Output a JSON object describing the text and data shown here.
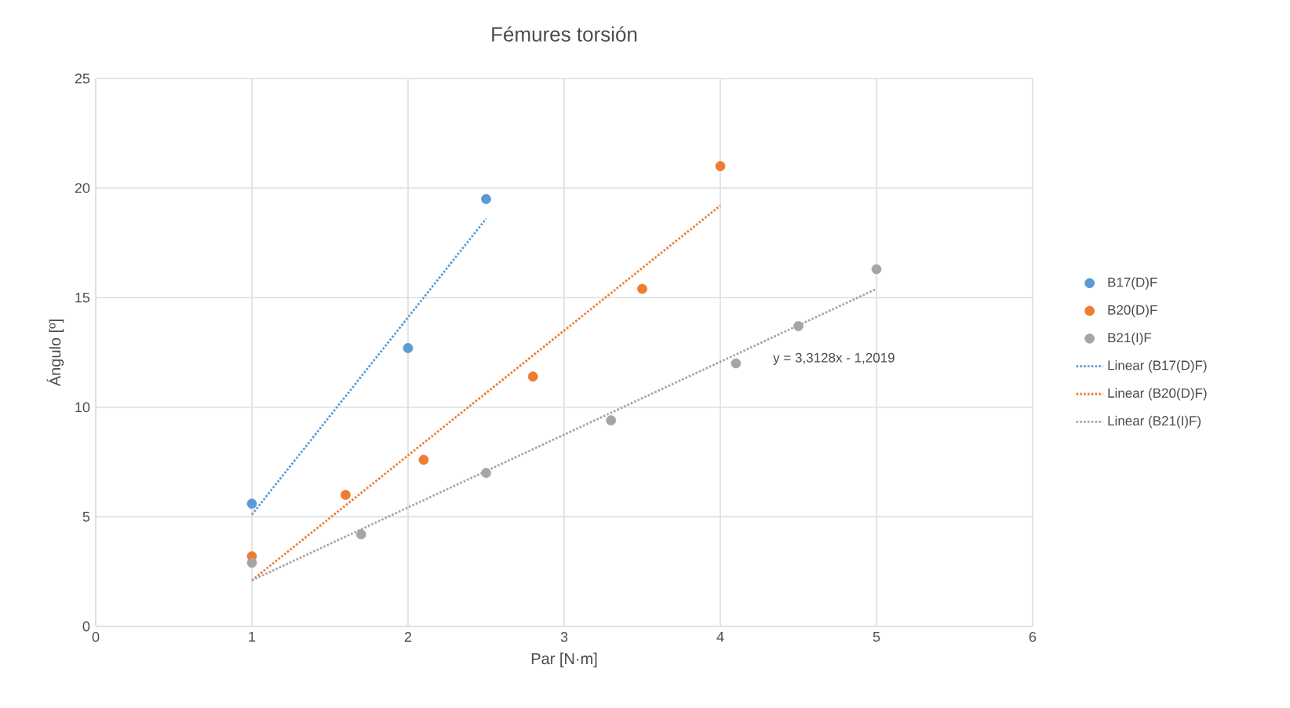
{
  "chart_data": {
    "type": "scatter",
    "title": "Fémures torsión",
    "xlabel": "Par [N·m]",
    "ylabel": "Ángulo [º]",
    "xlim": [
      0,
      6
    ],
    "xticks": [
      0,
      1,
      2,
      3,
      4,
      5,
      6
    ],
    "ylim": [
      0,
      25
    ],
    "yticks": [
      0,
      5,
      10,
      15,
      20,
      25
    ],
    "grid": true,
    "legend": "right",
    "marker": "circle",
    "series": [
      {
        "name": "B17(D)F",
        "color": "#5b9bd5",
        "x": [
          1,
          2,
          2.5
        ],
        "values": [
          5.6,
          12.7,
          19.5
        ]
      },
      {
        "name": "B20(D)F",
        "color": "#ed7d31",
        "x": [
          1,
          1.6,
          2.1,
          2.8,
          3.5,
          4.0
        ],
        "values": [
          3.2,
          6.0,
          7.6,
          11.4,
          15.4,
          21.0
        ]
      },
      {
        "name": "B21(I)F",
        "color": "#a5a5a5",
        "x": [
          1,
          1.7,
          2.5,
          3.3,
          4.1,
          4.5,
          5.0
        ],
        "values": [
          2.9,
          4.2,
          7.0,
          9.4,
          12.0,
          13.7,
          16.3
        ]
      },
      {
        "name": "Linear (B17(D)F)",
        "type": "line",
        "marker": "none",
        "line_style": "dotted",
        "color": "#5b9bd5",
        "x": [
          1,
          2.5
        ],
        "values": [
          5.1,
          18.6
        ]
      },
      {
        "name": "Linear (B20(D)F)",
        "type": "line",
        "marker": "none",
        "line_style": "dotted",
        "color": "#ed7d31",
        "x": [
          1,
          4
        ],
        "values": [
          2.1,
          19.2
        ]
      },
      {
        "name": "Linear (B21(I)F)",
        "type": "line",
        "marker": "none",
        "line_style": "dotted",
        "color": "#a5a5a5",
        "x": [
          1,
          5
        ],
        "values": [
          2.1,
          15.4
        ]
      }
    ],
    "annotations": [
      "y = 3,3128x - 1,2019"
    ]
  }
}
